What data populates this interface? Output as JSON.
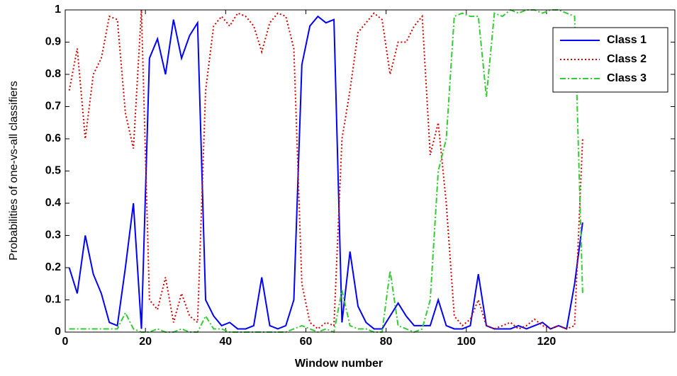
{
  "chart_data": {
    "type": "line",
    "xlabel": "Window number",
    "ylabel": "Probabilities of one-vs-all classifiers",
    "x": [
      1,
      3,
      5,
      7,
      9,
      11,
      13,
      15,
      17,
      19,
      21,
      23,
      25,
      27,
      29,
      31,
      33,
      35,
      37,
      39,
      41,
      43,
      45,
      47,
      49,
      51,
      53,
      55,
      57,
      59,
      61,
      63,
      65,
      67,
      69,
      71,
      73,
      75,
      77,
      79,
      81,
      83,
      85,
      87,
      89,
      91,
      93,
      95,
      97,
      99,
      101,
      103,
      105,
      107,
      109,
      111,
      113,
      115,
      117,
      119,
      121,
      123,
      125,
      127,
      129
    ],
    "series": [
      {
        "name": "Class 1",
        "color": "#0000ff",
        "style": "solid",
        "values": [
          0.2,
          0.12,
          0.3,
          0.18,
          0.12,
          0.03,
          0.02,
          0.2,
          0.4,
          0.01,
          0.85,
          0.91,
          0.8,
          0.97,
          0.85,
          0.92,
          0.96,
          0.1,
          0.05,
          0.02,
          0.03,
          0.01,
          0.01,
          0.02,
          0.17,
          0.02,
          0.01,
          0.02,
          0.1,
          0.83,
          0.95,
          0.98,
          0.96,
          0.97,
          0.03,
          0.25,
          0.08,
          0.03,
          0.01,
          0.01,
          0.05,
          0.09,
          0.05,
          0.02,
          0.02,
          0.02,
          0.1,
          0.02,
          0.01,
          0.01,
          0.02,
          0.18,
          0.02,
          0.01,
          0.01,
          0.01,
          0.02,
          0.01,
          0.02,
          0.03,
          0.01,
          0.02,
          0.01,
          0.15,
          0.34
        ]
      },
      {
        "name": "Class 2",
        "color": "#d40000",
        "style": "dotted",
        "values": [
          0.75,
          0.88,
          0.6,
          0.8,
          0.85,
          0.98,
          0.97,
          0.68,
          0.57,
          1.0,
          0.1,
          0.07,
          0.17,
          0.03,
          0.12,
          0.05,
          0.03,
          0.75,
          0.95,
          0.98,
          0.95,
          0.99,
          0.98,
          0.95,
          0.87,
          0.96,
          0.99,
          0.98,
          0.88,
          0.15,
          0.03,
          0.01,
          0.03,
          0.02,
          0.6,
          0.75,
          0.93,
          0.96,
          0.99,
          0.97,
          0.8,
          0.9,
          0.9,
          0.95,
          0.98,
          0.55,
          0.65,
          0.4,
          0.05,
          0.02,
          0.04,
          0.1,
          0.02,
          0.01,
          0.02,
          0.03,
          0.01,
          0.02,
          0.04,
          0.02,
          0.01,
          0.02,
          0.01,
          0.02,
          0.6
        ]
      },
      {
        "name": "Class 3",
        "color": "#33cc33",
        "style": "dashdot",
        "values": [
          0.01,
          0.01,
          0.01,
          0.01,
          0.01,
          0.01,
          0.01,
          0.06,
          0.01,
          0.0,
          0.0,
          0.01,
          0.0,
          0.0,
          0.01,
          0.0,
          0.0,
          0.05,
          0.01,
          0.01,
          0.0,
          0.0,
          0.0,
          0.0,
          0.0,
          0.0,
          0.0,
          0.0,
          0.01,
          0.02,
          0.01,
          0.0,
          0.01,
          0.0,
          0.13,
          0.02,
          0.01,
          0.01,
          0.0,
          0.0,
          0.19,
          0.02,
          0.01,
          0.0,
          0.01,
          0.1,
          0.5,
          0.6,
          0.98,
          0.99,
          0.98,
          0.98,
          0.73,
          0.99,
          0.98,
          1.0,
          0.99,
          1.0,
          1.0,
          0.99,
          1.0,
          1.0,
          0.99,
          0.98,
          0.12
        ]
      }
    ],
    "xlim": [
      0,
      152
    ],
    "xticks": [
      0,
      20,
      40,
      60,
      80,
      100,
      120
    ],
    "ylim": [
      0,
      1
    ],
    "yticks": [
      0,
      0.1,
      0.2,
      0.3,
      0.4,
      0.5,
      0.6,
      0.7,
      0.8,
      0.9,
      1
    ],
    "legend": "upper right",
    "grid": false
  }
}
